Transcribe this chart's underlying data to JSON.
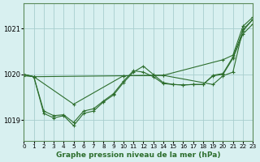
{
  "background_color": "#d8f0f0",
  "grid_color": "#a8cece",
  "line_color": "#2d6e2d",
  "title": "Graphe pression niveau de la mer (hPa)",
  "ylabel_ticks": [
    1019,
    1020,
    1021
  ],
  "xlim": [
    0,
    23
  ],
  "ylim": [
    1018.55,
    1021.55
  ],
  "series": [
    {
      "x": [
        0,
        1,
        2,
        3,
        4,
        5,
        6,
        7,
        8,
        9,
        10,
        11,
        12,
        13,
        14,
        15,
        16,
        17,
        18,
        19,
        20,
        21,
        22,
        23
      ],
      "y": [
        1020.0,
        1019.95,
        1019.15,
        1019.05,
        1019.1,
        1018.88,
        1019.15,
        1019.2,
        1019.4,
        1019.55,
        1019.82,
        1020.05,
        1020.18,
        1020.0,
        1019.82,
        1019.78,
        1019.77,
        1019.78,
        1019.78,
        1019.98,
        1020.02,
        1020.38,
        1020.95,
        1021.2
      ]
    },
    {
      "x": [
        0,
        1,
        2,
        3,
        4,
        5,
        6,
        7,
        8,
        9,
        10,
        11,
        12,
        13,
        14,
        15,
        16,
        17,
        18,
        19,
        20,
        21,
        22,
        23
      ],
      "y": [
        1019.97,
        1019.95,
        1019.2,
        1019.1,
        1019.12,
        1018.95,
        1019.2,
        1019.25,
        1019.42,
        1019.58,
        1019.85,
        1020.08,
        1020.05,
        1019.95,
        1019.8,
        1019.78,
        1019.77,
        1019.78,
        1019.78,
        1019.97,
        1020.0,
        1020.35,
        1020.88,
        1021.1
      ]
    },
    {
      "x": [
        0,
        1,
        10,
        14,
        20,
        21,
        22,
        23
      ],
      "y": [
        1020.0,
        1019.95,
        1019.97,
        1019.98,
        1020.32,
        1020.42,
        1021.05,
        1021.25
      ]
    },
    {
      "x": [
        0,
        1,
        5,
        10,
        14,
        19,
        20,
        21,
        22,
        23
      ],
      "y": [
        1020.0,
        1019.95,
        1019.35,
        1019.97,
        1019.98,
        1019.78,
        1019.97,
        1020.05,
        1020.98,
        1021.2
      ]
    }
  ]
}
